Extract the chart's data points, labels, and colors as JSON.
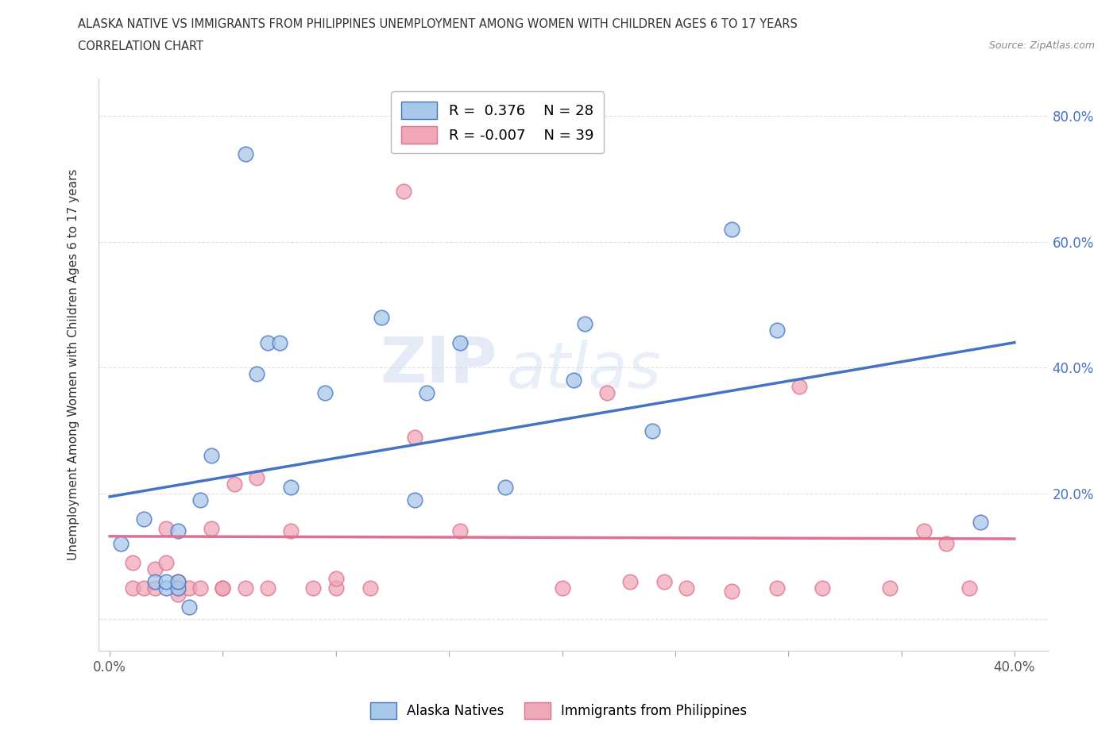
{
  "title_line1": "ALASKA NATIVE VS IMMIGRANTS FROM PHILIPPINES UNEMPLOYMENT AMONG WOMEN WITH CHILDREN AGES 6 TO 17 YEARS",
  "title_line2": "CORRELATION CHART",
  "source_text": "Source: ZipAtlas.com",
  "ylabel": "Unemployment Among Women with Children Ages 6 to 17 years",
  "xlim": [
    -0.005,
    0.415
  ],
  "ylim": [
    -0.05,
    0.86
  ],
  "xticks": [
    0.0,
    0.05,
    0.1,
    0.15,
    0.2,
    0.25,
    0.3,
    0.35,
    0.4
  ],
  "xtick_labels": [
    "0.0%",
    "",
    "",
    "",
    "",
    "",
    "",
    "",
    "40.0%"
  ],
  "yticks": [
    0.0,
    0.2,
    0.4,
    0.6,
    0.8
  ],
  "ytick_labels_right": [
    "",
    "20.0%",
    "40.0%",
    "60.0%",
    "80.0%"
  ],
  "legend_r1": "R =  0.376",
  "legend_n1": "N = 28",
  "legend_r2": "R = -0.007",
  "legend_n2": "N = 39",
  "color_blue": "#A8C8E8",
  "color_pink": "#F0A8B8",
  "color_blue_line": "#4472C4",
  "color_pink_line": "#E07090",
  "watermark_zip": "ZIP",
  "watermark_atlas": "atlas",
  "blue_scatter_x": [
    0.005,
    0.015,
    0.02,
    0.025,
    0.025,
    0.03,
    0.03,
    0.03,
    0.035,
    0.04,
    0.045,
    0.06,
    0.065,
    0.07,
    0.075,
    0.08,
    0.095,
    0.12,
    0.135,
    0.14,
    0.155,
    0.175,
    0.205,
    0.21,
    0.24,
    0.275,
    0.295,
    0.385
  ],
  "blue_scatter_y": [
    0.12,
    0.16,
    0.06,
    0.05,
    0.06,
    0.05,
    0.06,
    0.14,
    0.02,
    0.19,
    0.26,
    0.74,
    0.39,
    0.44,
    0.44,
    0.21,
    0.36,
    0.48,
    0.19,
    0.36,
    0.44,
    0.21,
    0.38,
    0.47,
    0.3,
    0.62,
    0.46,
    0.155
  ],
  "pink_scatter_x": [
    0.01,
    0.01,
    0.015,
    0.02,
    0.02,
    0.025,
    0.025,
    0.03,
    0.03,
    0.035,
    0.04,
    0.045,
    0.05,
    0.05,
    0.055,
    0.06,
    0.065,
    0.07,
    0.08,
    0.09,
    0.1,
    0.1,
    0.115,
    0.13,
    0.135,
    0.155,
    0.2,
    0.22,
    0.23,
    0.245,
    0.255,
    0.275,
    0.295,
    0.305,
    0.315,
    0.345,
    0.36,
    0.37,
    0.38
  ],
  "pink_scatter_y": [
    0.05,
    0.09,
    0.05,
    0.05,
    0.08,
    0.09,
    0.145,
    0.04,
    0.06,
    0.05,
    0.05,
    0.145,
    0.05,
    0.05,
    0.215,
    0.05,
    0.225,
    0.05,
    0.14,
    0.05,
    0.05,
    0.065,
    0.05,
    0.68,
    0.29,
    0.14,
    0.05,
    0.36,
    0.06,
    0.06,
    0.05,
    0.045,
    0.05,
    0.37,
    0.05,
    0.05,
    0.14,
    0.12,
    0.05
  ],
  "blue_line_x": [
    0.0,
    0.4
  ],
  "blue_line_y": [
    0.195,
    0.44
  ],
  "pink_line_x": [
    0.0,
    0.4
  ],
  "pink_line_y": [
    0.132,
    0.128
  ],
  "background_color": "#FFFFFF",
  "grid_color": "#DDDDDD",
  "right_tick_color": "#4472C4"
}
